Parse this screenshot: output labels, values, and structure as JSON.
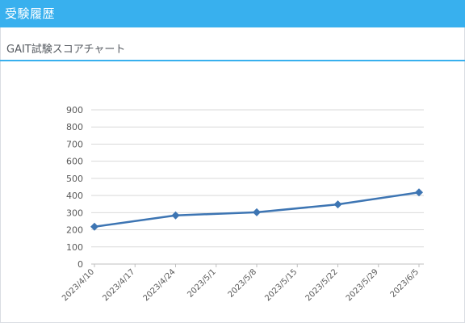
{
  "header": {
    "title": "受験履歴"
  },
  "section": {
    "title": "GAIT試験スコアチャート"
  },
  "colors": {
    "header_bg": "#38b0ee",
    "line": "#3d75b3",
    "marker": "#3d75b3",
    "grid": "#d9d9d9"
  },
  "chart_data": {
    "type": "line",
    "title": "",
    "xlabel": "",
    "ylabel": "",
    "ylim": [
      0,
      900
    ],
    "y_ticks": [
      "0",
      "100",
      "200",
      "300",
      "400",
      "500",
      "600",
      "700",
      "800",
      "900"
    ],
    "x_ticks": [
      "2023/4/10",
      "2023/4/17",
      "2023/4/24",
      "2023/5/1",
      "2023/5/8",
      "2023/5/15",
      "2023/5/22",
      "2023/5/29",
      "2023/6/5"
    ],
    "grid": true,
    "series": [
      {
        "x": [
          "2023/4/10",
          "2023/4/24",
          "2023/5/8",
          "2023/5/22",
          "2023/6/5"
        ],
        "values": [
          218,
          284,
          302,
          348,
          418
        ]
      }
    ]
  }
}
